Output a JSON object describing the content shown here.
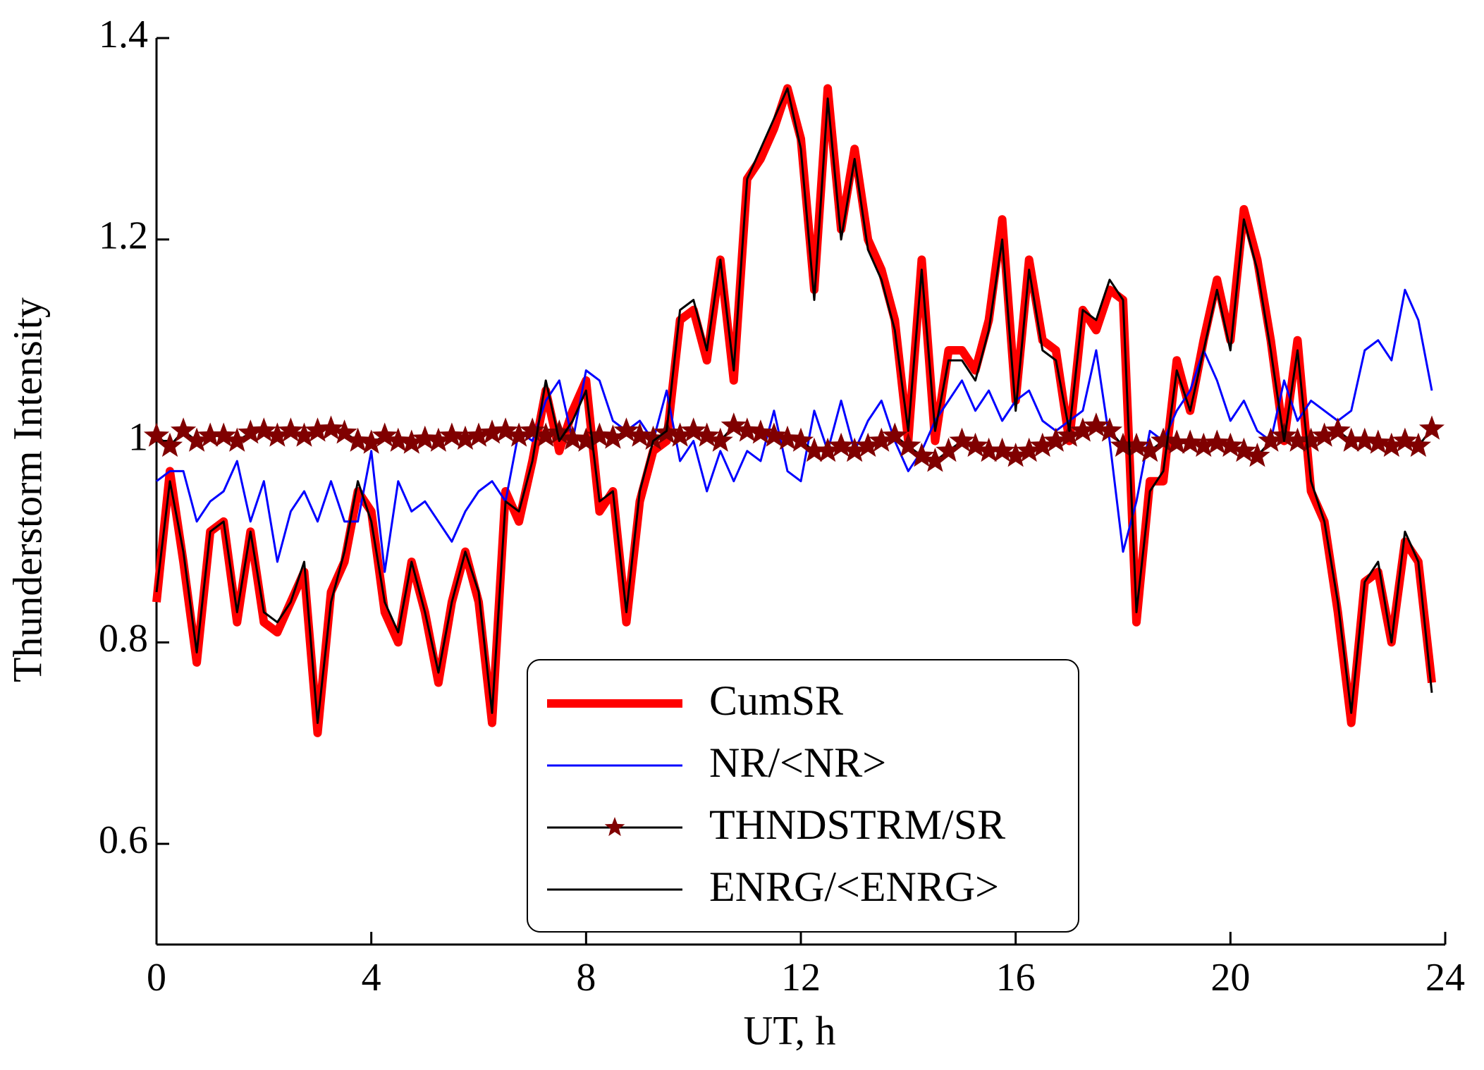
{
  "chart_data": {
    "type": "line",
    "x_label": "UT, h",
    "y_label": "Thunderstorm Intensity",
    "xlim": [
      0,
      24
    ],
    "xticks": [
      0,
      4,
      8,
      12,
      16,
      20,
      24
    ],
    "ylim": [
      0.5,
      1.4
    ],
    "yticks": [
      0.6,
      0.8,
      1,
      1.2,
      1.4
    ],
    "x": [
      0,
      0.25,
      0.5,
      0.75,
      1,
      1.25,
      1.5,
      1.75,
      2,
      2.25,
      2.5,
      2.75,
      3,
      3.25,
      3.5,
      3.75,
      4,
      4.25,
      4.5,
      4.75,
      5,
      5.25,
      5.5,
      5.75,
      6,
      6.25,
      6.5,
      6.75,
      7,
      7.25,
      7.5,
      7.75,
      8,
      8.25,
      8.5,
      8.75,
      9,
      9.25,
      9.5,
      9.75,
      10,
      10.25,
      10.5,
      10.75,
      11,
      11.25,
      11.5,
      11.75,
      12,
      12.25,
      12.5,
      12.75,
      13,
      13.25,
      13.5,
      13.75,
      14,
      14.25,
      14.5,
      14.75,
      15,
      15.25,
      15.5,
      15.75,
      16,
      16.25,
      16.5,
      16.75,
      17,
      17.25,
      17.5,
      17.75,
      18,
      18.25,
      18.5,
      18.75,
      19,
      19.25,
      19.5,
      19.75,
      20,
      20.25,
      20.5,
      20.75,
      21,
      21.25,
      21.5,
      21.75,
      22,
      22.25,
      22.5,
      22.75,
      23,
      23.25,
      23.5,
      23.75
    ],
    "legend": "bottom-center",
    "series": [
      {
        "name": "CumSR",
        "color": "#ff0000",
        "linewidth": 12,
        "marker": "none",
        "values": [
          0.84,
          0.97,
          0.88,
          0.78,
          0.91,
          0.92,
          0.82,
          0.91,
          0.82,
          0.81,
          0.84,
          0.87,
          0.71,
          0.85,
          0.88,
          0.95,
          0.93,
          0.83,
          0.8,
          0.88,
          0.83,
          0.76,
          0.84,
          0.89,
          0.84,
          0.72,
          0.95,
          0.92,
          0.98,
          1.05,
          0.99,
          1.03,
          1.06,
          0.93,
          0.95,
          0.82,
          0.94,
          0.99,
          1.0,
          1.12,
          1.13,
          1.08,
          1.18,
          1.06,
          1.26,
          1.28,
          1.31,
          1.35,
          1.3,
          1.15,
          1.35,
          1.21,
          1.29,
          1.2,
          1.17,
          1.12,
          1.0,
          1.18,
          1.0,
          1.09,
          1.09,
          1.07,
          1.12,
          1.22,
          1.04,
          1.18,
          1.1,
          1.09,
          1.0,
          1.13,
          1.11,
          1.15,
          1.14,
          0.82,
          0.96,
          0.96,
          1.08,
          1.03,
          1.1,
          1.16,
          1.1,
          1.23,
          1.18,
          1.1,
          1.0,
          1.1,
          0.95,
          0.92,
          0.83,
          0.72,
          0.86,
          0.87,
          0.8,
          0.9,
          0.88,
          0.76
        ]
      },
      {
        "name": "NR/<NR>",
        "color": "#0000ff",
        "linewidth": 3,
        "marker": "none",
        "values": [
          0.96,
          0.97,
          0.97,
          0.92,
          0.94,
          0.95,
          0.98,
          0.92,
          0.96,
          0.88,
          0.93,
          0.95,
          0.92,
          0.96,
          0.92,
          0.92,
          0.99,
          0.87,
          0.96,
          0.93,
          0.94,
          0.92,
          0.9,
          0.93,
          0.95,
          0.96,
          0.94,
          1.01,
          1.0,
          1.04,
          1.06,
          1.0,
          1.07,
          1.06,
          1.02,
          1.01,
          1.02,
          1.0,
          1.05,
          0.98,
          1.0,
          0.95,
          0.99,
          0.96,
          0.99,
          0.98,
          1.03,
          0.97,
          0.96,
          1.03,
          0.99,
          1.04,
          0.99,
          1.02,
          1.04,
          1.0,
          0.97,
          0.99,
          1.02,
          1.04,
          1.06,
          1.03,
          1.05,
          1.02,
          1.04,
          1.05,
          1.02,
          1.01,
          1.02,
          1.03,
          1.09,
          1.0,
          0.89,
          0.94,
          1.01,
          1.0,
          1.03,
          1.05,
          1.09,
          1.06,
          1.02,
          1.04,
          1.01,
          1.0,
          1.06,
          1.02,
          1.04,
          1.03,
          1.02,
          1.03,
          1.09,
          1.1,
          1.08,
          1.15,
          1.12,
          1.05
        ]
      },
      {
        "name": "THNDSTRM/SR",
        "color": "#000000",
        "marker_color": "#800000",
        "linewidth": 3,
        "marker": "star",
        "values": [
          1.005,
          0.995,
          1.01,
          1.0,
          1.005,
          1.005,
          1.0,
          1.008,
          1.01,
          1.005,
          1.01,
          1.005,
          1.01,
          1.012,
          1.008,
          1.0,
          0.998,
          1.005,
          1.0,
          0.998,
          1.002,
          1.0,
          1.005,
          1.002,
          1.005,
          1.008,
          1.01,
          1.005,
          1.01,
          1.005,
          1.008,
          1.002,
          1.0,
          1.005,
          1.003,
          1.01,
          1.005,
          1.002,
          1.008,
          1.005,
          1.01,
          1.005,
          1.0,
          1.015,
          1.01,
          1.008,
          1.005,
          1.002,
          1.0,
          0.99,
          0.99,
          0.995,
          0.99,
          0.995,
          1.0,
          1.005,
          0.995,
          0.985,
          0.98,
          0.99,
          1.0,
          0.995,
          0.99,
          0.99,
          0.985,
          0.99,
          0.995,
          1.0,
          1.005,
          1.01,
          1.015,
          1.01,
          0.995,
          0.995,
          0.99,
          1.0,
          0.998,
          0.998,
          0.995,
          0.998,
          0.995,
          0.99,
          0.985,
          1.0,
          1.005,
          1.0,
          1.0,
          1.005,
          1.01,
          1.0,
          1.0,
          0.998,
          0.995,
          1.0,
          0.995,
          1.012
        ]
      },
      {
        "name": "ENRG/<ENRG>",
        "color": "#000000",
        "linewidth": 3,
        "marker": "none",
        "values": [
          0.85,
          0.96,
          0.89,
          0.79,
          0.91,
          0.92,
          0.83,
          0.91,
          0.83,
          0.82,
          0.84,
          0.88,
          0.72,
          0.84,
          0.89,
          0.96,
          0.92,
          0.84,
          0.81,
          0.88,
          0.83,
          0.77,
          0.84,
          0.89,
          0.85,
          0.73,
          0.94,
          0.93,
          0.98,
          1.06,
          1.0,
          1.02,
          1.05,
          0.94,
          0.95,
          0.83,
          0.95,
          1.0,
          1.01,
          1.13,
          1.14,
          1.09,
          1.18,
          1.07,
          1.26,
          1.29,
          1.32,
          1.35,
          1.29,
          1.14,
          1.34,
          1.2,
          1.28,
          1.19,
          1.16,
          1.11,
          1.01,
          1.17,
          1.01,
          1.08,
          1.08,
          1.06,
          1.11,
          1.2,
          1.03,
          1.17,
          1.09,
          1.08,
          1.01,
          1.13,
          1.12,
          1.16,
          1.14,
          0.83,
          0.95,
          0.97,
          1.07,
          1.03,
          1.09,
          1.15,
          1.09,
          1.22,
          1.17,
          1.09,
          1.0,
          1.09,
          0.96,
          0.92,
          0.84,
          0.73,
          0.86,
          0.88,
          0.8,
          0.91,
          0.88,
          0.75
        ]
      }
    ]
  }
}
